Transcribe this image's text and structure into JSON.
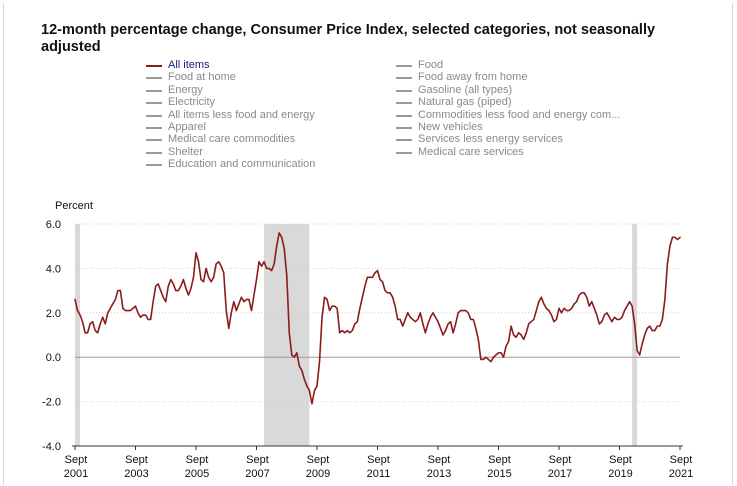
{
  "chart_data": {
    "type": "line",
    "title": "12-month percentage change, Consumer Price Index, selected categories, not seasonally adjusted",
    "ylabel": "Percent",
    "xlabel": "",
    "ylim": [
      -4.0,
      6.0
    ],
    "y_ticks": [
      "6.0",
      "4.0",
      "2.0",
      "0.0",
      "-2.0",
      "-4.0"
    ],
    "y_tick_values": [
      6,
      4,
      2,
      0,
      -2,
      -4
    ],
    "x_ticks": [
      {
        "month": "Sept",
        "year": "2001",
        "t": 0
      },
      {
        "month": "Sept",
        "year": "2003",
        "t": 24
      },
      {
        "month": "Sept",
        "year": "2005",
        "t": 48
      },
      {
        "month": "Sept",
        "year": "2007",
        "t": 72
      },
      {
        "month": "Sept",
        "year": "2009",
        "t": 96
      },
      {
        "month": "Sept",
        "year": "2011",
        "t": 120
      },
      {
        "month": "Sept",
        "year": "2013",
        "t": 144
      },
      {
        "month": "Sept",
        "year": "2015",
        "t": 168
      },
      {
        "month": "Sept",
        "year": "2017",
        "t": 192
      },
      {
        "month": "Sept",
        "year": "2019",
        "t": 216
      },
      {
        "month": "Sept",
        "year": "2021",
        "t": 240
      }
    ],
    "recessions": [
      [
        0,
        2
      ],
      [
        75,
        93
      ],
      [
        221,
        223
      ]
    ],
    "grid": true,
    "legend_placement": "top",
    "legend": [
      {
        "label": "All items",
        "active": true
      },
      {
        "label": "Food at home",
        "active": false
      },
      {
        "label": "Energy",
        "active": false
      },
      {
        "label": "Electricity",
        "active": false
      },
      {
        "label": "All items less food and energy",
        "active": false
      },
      {
        "label": "Apparel",
        "active": false
      },
      {
        "label": "Medical care commodities",
        "active": false
      },
      {
        "label": "Shelter",
        "active": false
      },
      {
        "label": "Education and communication",
        "active": false
      },
      {
        "label": "Food",
        "active": false
      },
      {
        "label": "Food away from home",
        "active": false
      },
      {
        "label": "Gasoline (all types)",
        "active": false
      },
      {
        "label": "Natural gas (piped)",
        "active": false
      },
      {
        "label": "Commodities less food and energy com...",
        "active": false
      },
      {
        "label": "New vehicles",
        "active": false
      },
      {
        "label": "Services less energy services",
        "active": false
      },
      {
        "label": "Medical care services",
        "active": false
      }
    ],
    "colors": {
      "series": "#8b1c1c",
      "recession": "#d9d9d9",
      "grid": "#cfcfcf"
    },
    "series": [
      {
        "name": "All items",
        "x_unit": "months since Sept 2001",
        "points": [
          [
            0,
            2.6
          ],
          [
            1,
            2.1
          ],
          [
            2,
            1.9
          ],
          [
            3,
            1.6
          ],
          [
            4,
            1.1
          ],
          [
            5,
            1.1
          ],
          [
            6,
            1.5
          ],
          [
            7,
            1.6
          ],
          [
            8,
            1.2
          ],
          [
            9,
            1.1
          ],
          [
            10,
            1.5
          ],
          [
            11,
            1.8
          ],
          [
            12,
            1.5
          ],
          [
            13,
            2.0
          ],
          [
            14,
            2.2
          ],
          [
            15,
            2.4
          ],
          [
            16,
            2.6
          ],
          [
            17,
            3.0
          ],
          [
            18,
            3.0
          ],
          [
            19,
            2.2
          ],
          [
            20,
            2.1
          ],
          [
            21,
            2.1
          ],
          [
            22,
            2.1
          ],
          [
            23,
            2.2
          ],
          [
            24,
            2.3
          ],
          [
            25,
            2.0
          ],
          [
            26,
            1.8
          ],
          [
            27,
            1.9
          ],
          [
            28,
            1.9
          ],
          [
            29,
            1.7
          ],
          [
            30,
            1.7
          ],
          [
            31,
            2.5
          ],
          [
            32,
            3.2
          ],
          [
            33,
            3.3
          ],
          [
            34,
            3.0
          ],
          [
            35,
            2.7
          ],
          [
            36,
            2.5
          ],
          [
            37,
            3.2
          ],
          [
            38,
            3.5
          ],
          [
            39,
            3.3
          ],
          [
            40,
            3.0
          ],
          [
            41,
            3.0
          ],
          [
            42,
            3.2
          ],
          [
            43,
            3.5
          ],
          [
            44,
            3.1
          ],
          [
            45,
            2.8
          ],
          [
            46,
            3.1
          ],
          [
            47,
            3.6
          ],
          [
            48,
            4.7
          ],
          [
            49,
            4.3
          ],
          [
            50,
            3.5
          ],
          [
            51,
            3.4
          ],
          [
            52,
            4.0
          ],
          [
            53,
            3.6
          ],
          [
            54,
            3.4
          ],
          [
            55,
            3.6
          ],
          [
            56,
            4.2
          ],
          [
            57,
            4.3
          ],
          [
            58,
            4.1
          ],
          [
            59,
            3.8
          ],
          [
            60,
            2.1
          ],
          [
            61,
            1.3
          ],
          [
            62,
            2.0
          ],
          [
            63,
            2.5
          ],
          [
            64,
            2.1
          ],
          [
            65,
            2.4
          ],
          [
            66,
            2.7
          ],
          [
            67,
            2.5
          ],
          [
            68,
            2.6
          ],
          [
            69,
            2.6
          ],
          [
            70,
            2.1
          ],
          [
            71,
            2.8
          ],
          [
            72,
            3.5
          ],
          [
            73,
            4.3
          ],
          [
            74,
            4.1
          ],
          [
            75,
            4.3
          ],
          [
            76,
            4.0
          ],
          [
            77,
            4.0
          ],
          [
            78,
            3.9
          ],
          [
            79,
            4.2
          ],
          [
            80,
            5.0
          ],
          [
            81,
            5.6
          ],
          [
            82,
            5.4
          ],
          [
            83,
            4.9
          ],
          [
            84,
            3.7
          ],
          [
            85,
            1.1
          ],
          [
            86,
            0.1
          ],
          [
            87,
            0.0
          ],
          [
            88,
            0.2
          ],
          [
            89,
            -0.4
          ],
          [
            90,
            -0.6
          ],
          [
            91,
            -1.0
          ],
          [
            92,
            -1.3
          ],
          [
            93,
            -1.5
          ],
          [
            94,
            -2.1
          ],
          [
            95,
            -1.5
          ],
          [
            96,
            -1.3
          ],
          [
            97,
            -0.2
          ],
          [
            98,
            1.8
          ],
          [
            99,
            2.7
          ],
          [
            100,
            2.6
          ],
          [
            101,
            2.1
          ],
          [
            102,
            2.3
          ],
          [
            103,
            2.3
          ],
          [
            104,
            2.2
          ],
          [
            105,
            1.1
          ],
          [
            106,
            1.2
          ],
          [
            107,
            1.1
          ],
          [
            108,
            1.2
          ],
          [
            109,
            1.1
          ],
          [
            110,
            1.2
          ],
          [
            111,
            1.5
          ],
          [
            112,
            1.6
          ],
          [
            113,
            2.2
          ],
          [
            114,
            2.7
          ],
          [
            115,
            3.2
          ],
          [
            116,
            3.6
          ],
          [
            117,
            3.6
          ],
          [
            118,
            3.6
          ],
          [
            119,
            3.8
          ],
          [
            120,
            3.9
          ],
          [
            121,
            3.5
          ],
          [
            122,
            3.4
          ],
          [
            123,
            3.0
          ],
          [
            124,
            2.9
          ],
          [
            125,
            2.9
          ],
          [
            126,
            2.7
          ],
          [
            127,
            2.3
          ],
          [
            128,
            1.7
          ],
          [
            129,
            1.7
          ],
          [
            130,
            1.4
          ],
          [
            131,
            1.7
          ],
          [
            132,
            2.0
          ],
          [
            133,
            1.8
          ],
          [
            134,
            1.7
          ],
          [
            135,
            1.6
          ],
          [
            136,
            1.7
          ],
          [
            137,
            2.0
          ],
          [
            138,
            1.5
          ],
          [
            139,
            1.1
          ],
          [
            140,
            1.5
          ],
          [
            141,
            1.8
          ],
          [
            142,
            2.0
          ],
          [
            143,
            1.8
          ],
          [
            144,
            1.6
          ],
          [
            145,
            1.3
          ],
          [
            146,
            1.0
          ],
          [
            147,
            1.2
          ],
          [
            148,
            1.5
          ],
          [
            149,
            1.6
          ],
          [
            150,
            1.1
          ],
          [
            151,
            1.5
          ],
          [
            152,
            2.0
          ],
          [
            153,
            2.1
          ],
          [
            154,
            2.1
          ],
          [
            155,
            2.1
          ],
          [
            156,
            2.0
          ],
          [
            157,
            1.7
          ],
          [
            158,
            1.7
          ],
          [
            159,
            1.3
          ],
          [
            160,
            0.8
          ],
          [
            161,
            -0.1
          ],
          [
            162,
            -0.1
          ],
          [
            163,
            0.0
          ],
          [
            164,
            -0.1
          ],
          [
            165,
            -0.2
          ],
          [
            166,
            0.0
          ],
          [
            167,
            0.1
          ],
          [
            168,
            0.2
          ],
          [
            169,
            0.2
          ],
          [
            170,
            0.0
          ],
          [
            171,
            0.5
          ],
          [
            172,
            0.7
          ],
          [
            173,
            1.4
          ],
          [
            174,
            1.0
          ],
          [
            175,
            0.9
          ],
          [
            176,
            1.1
          ],
          [
            177,
            1.0
          ],
          [
            178,
            0.8
          ],
          [
            179,
            1.1
          ],
          [
            180,
            1.5
          ],
          [
            181,
            1.6
          ],
          [
            182,
            1.7
          ],
          [
            183,
            2.1
          ],
          [
            184,
            2.5
          ],
          [
            185,
            2.7
          ],
          [
            186,
            2.4
          ],
          [
            187,
            2.2
          ],
          [
            188,
            2.1
          ],
          [
            189,
            1.9
          ],
          [
            190,
            1.6
          ],
          [
            191,
            1.7
          ],
          [
            192,
            2.2
          ],
          [
            193,
            2.0
          ],
          [
            194,
            2.2
          ],
          [
            195,
            2.1
          ],
          [
            196,
            2.1
          ],
          [
            197,
            2.2
          ],
          [
            198,
            2.4
          ],
          [
            199,
            2.5
          ],
          [
            200,
            2.8
          ],
          [
            201,
            2.9
          ],
          [
            202,
            2.9
          ],
          [
            203,
            2.7
          ],
          [
            204,
            2.3
          ],
          [
            205,
            2.5
          ],
          [
            206,
            2.2
          ],
          [
            207,
            1.9
          ],
          [
            208,
            1.5
          ],
          [
            209,
            1.6
          ],
          [
            210,
            1.9
          ],
          [
            211,
            2.0
          ],
          [
            212,
            1.8
          ],
          [
            213,
            1.6
          ],
          [
            214,
            1.8
          ],
          [
            215,
            1.7
          ],
          [
            216,
            1.7
          ],
          [
            217,
            1.8
          ],
          [
            218,
            2.1
          ],
          [
            219,
            2.3
          ],
          [
            220,
            2.5
          ],
          [
            221,
            2.3
          ],
          [
            222,
            1.5
          ],
          [
            223,
            0.3
          ],
          [
            224,
            0.1
          ],
          [
            225,
            0.6
          ],
          [
            226,
            1.0
          ],
          [
            227,
            1.3
          ],
          [
            228,
            1.4
          ],
          [
            229,
            1.2
          ],
          [
            230,
            1.2
          ],
          [
            231,
            1.4
          ],
          [
            232,
            1.4
          ],
          [
            233,
            1.7
          ],
          [
            234,
            2.6
          ],
          [
            235,
            4.2
          ],
          [
            236,
            5.0
          ],
          [
            237,
            5.4
          ],
          [
            238,
            5.4
          ],
          [
            239,
            5.3
          ],
          [
            240,
            5.4
          ]
        ]
      }
    ]
  }
}
